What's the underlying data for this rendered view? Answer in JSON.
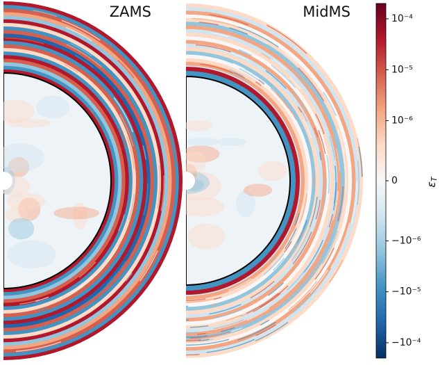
{
  "chart_data": {
    "type": "symlog-colorbar-panels",
    "panels": [
      {
        "title": "ZAMS"
      },
      {
        "title": "MidMS"
      }
    ],
    "colorbar_label": {
      "symbol": "ε",
      "subscript": "T"
    },
    "ylim": [
      -0.0002,
      0.0002
    ],
    "scale": "symlog",
    "linthresh": 1e-06,
    "linscale": 1.18,
    "yticks": [
      {
        "value": 0.0001,
        "label": "10⁻⁴"
      },
      {
        "value": 1e-05,
        "label": "10⁻⁵"
      },
      {
        "value": 1e-06,
        "label": "10⁻⁶"
      },
      0,
      {
        "value": -1e-06,
        "label": "−10⁻⁶"
      },
      {
        "value": -1e-05,
        "label": "−10⁻⁵"
      },
      {
        "value": -0.0001,
        "label": "−10⁻⁴"
      }
    ],
    "colormap": [
      "#053061",
      "#2166ac",
      "#4393c3",
      "#92c5de",
      "#d1e5f0",
      "#f7f7f7",
      "#fddbc7",
      "#f4a582",
      "#d6604d",
      "#b2182b",
      "#67001f"
    ]
  }
}
